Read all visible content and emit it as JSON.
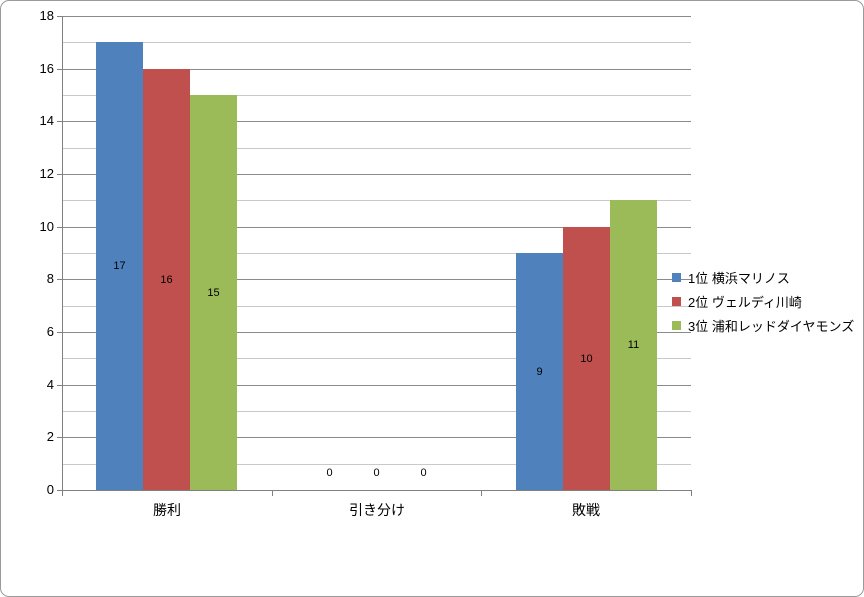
{
  "chart": {
    "background": "#ffffff",
    "border_color": "#9a9a9a",
    "axis_color": "#808080",
    "major_grid_color": "#8a8a8a",
    "minor_grid_color": "#c9c9c9",
    "text_color": "#000000"
  },
  "chart_data": {
    "type": "bar",
    "title": "",
    "xlabel": "",
    "ylabel": "",
    "categories": [
      "勝利",
      "引き分け",
      "敗戦"
    ],
    "series": [
      {
        "name": "1位  横浜マリノス",
        "color": "#4F81BD",
        "values": [
          17,
          0,
          9
        ]
      },
      {
        "name": "2位  ヴェルディ川崎",
        "color": "#C0504D",
        "values": [
          16,
          0,
          10
        ]
      },
      {
        "name": "3位  浦和レッドダイヤモンズ",
        "color": "#9BBB59",
        "values": [
          15,
          0,
          11
        ]
      }
    ],
    "ylim": [
      0,
      18
    ],
    "y_major_step": 2,
    "y_minor_step": 1,
    "y_tick_labels": [
      "0",
      "2",
      "4",
      "6",
      "8",
      "10",
      "12",
      "14",
      "16",
      "18"
    ],
    "grid": true,
    "minor_grid": true,
    "legend_position": "right",
    "data_labels": "center"
  }
}
